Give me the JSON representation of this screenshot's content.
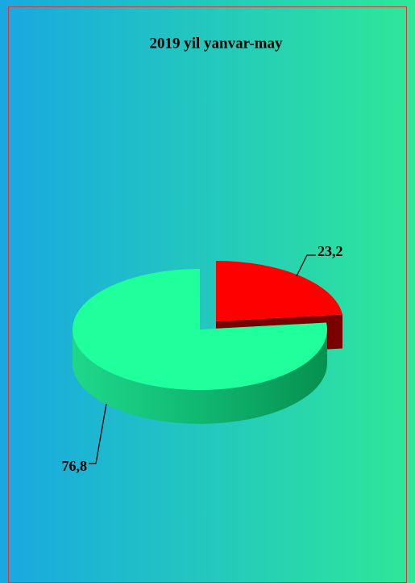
{
  "chart_data": {
    "type": "pie",
    "title": "2019 yil yanvar-may",
    "values": [
      23.2,
      76.8
    ],
    "value_labels": [
      "23,2",
      "76,8"
    ],
    "colors": [
      "#ff0000",
      "#1fff9c"
    ]
  }
}
